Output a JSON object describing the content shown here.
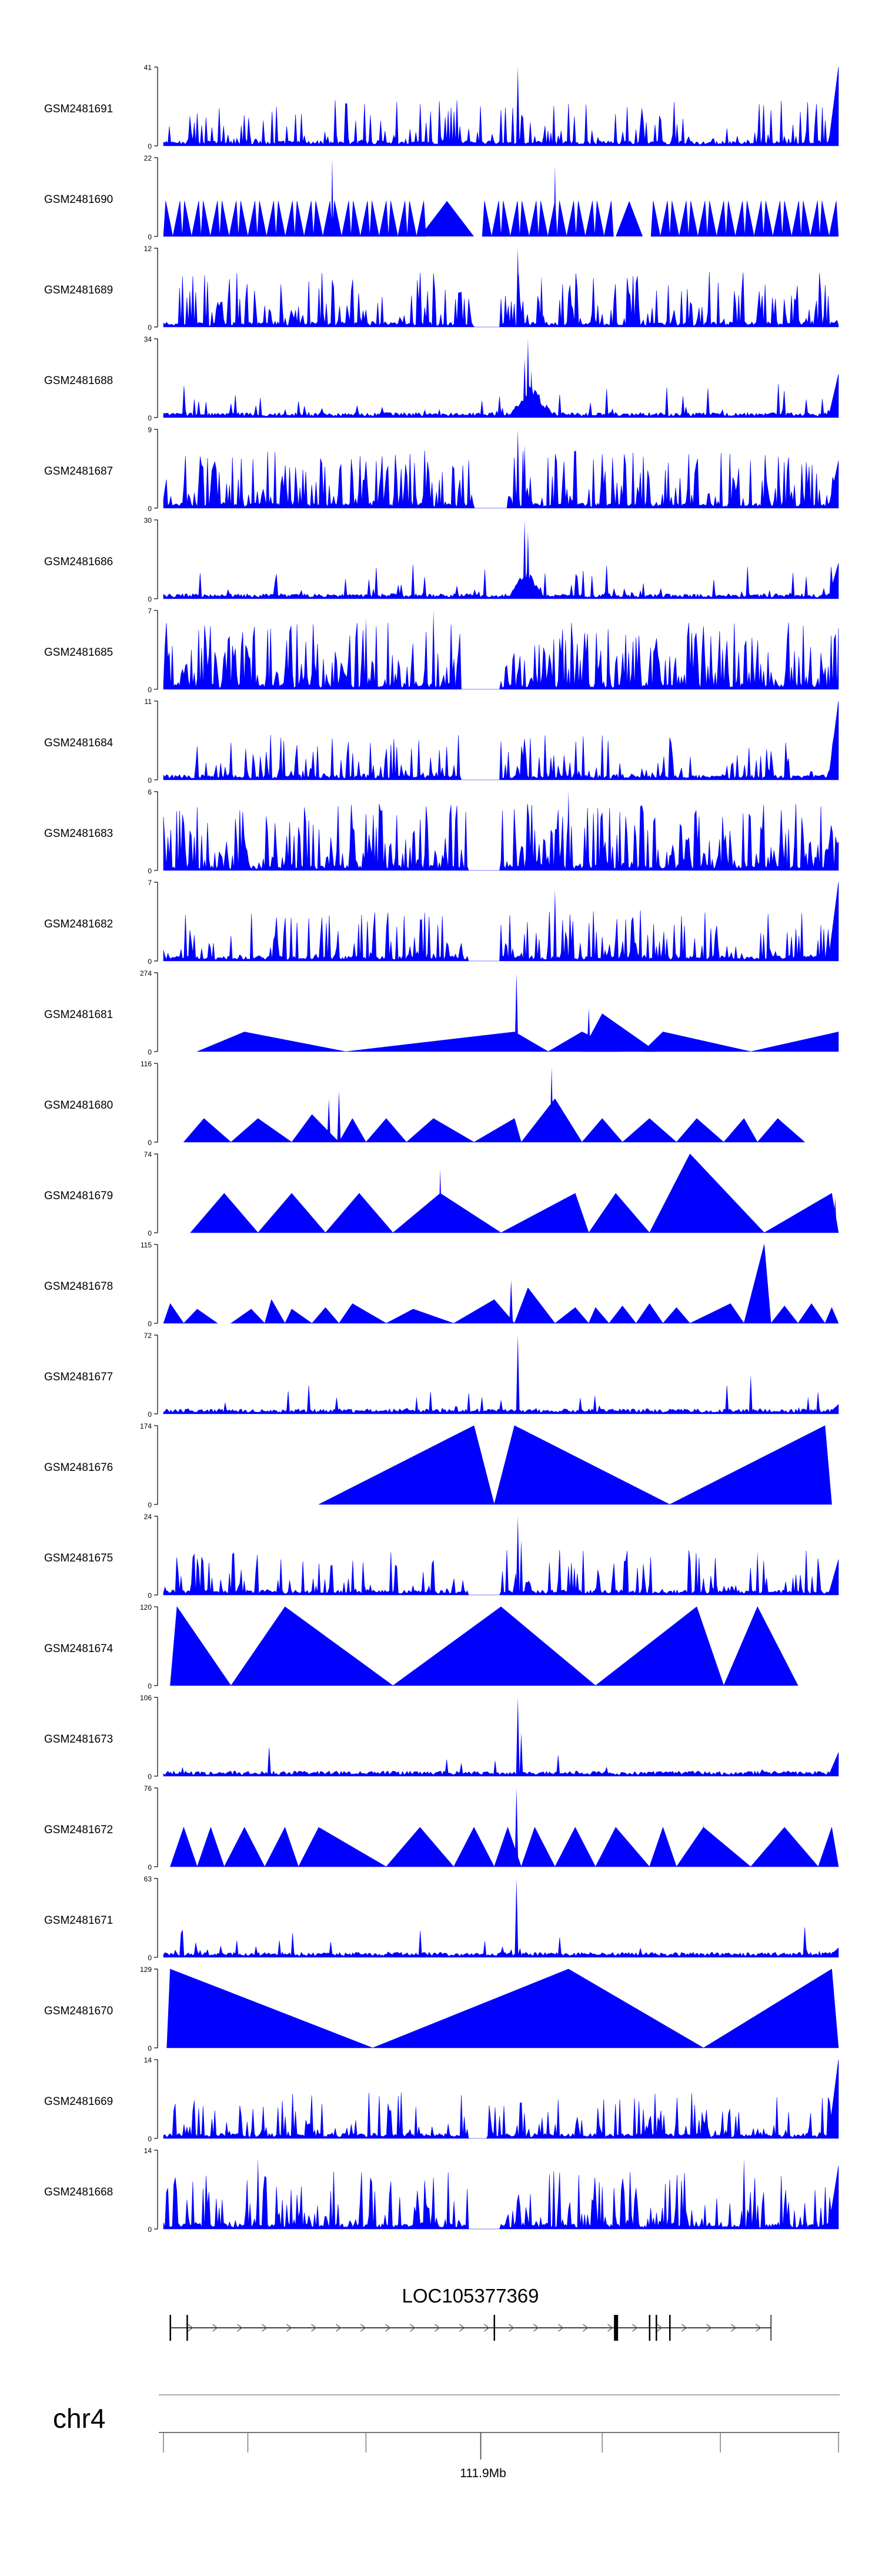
{
  "chart_data": {
    "type": "area",
    "color_fill": "#0000ff",
    "color_axis": "#000000",
    "tracks": [
      {
        "name": "GSM2481691",
        "ymax": 41,
        "ymin": 0,
        "pattern": "noise",
        "density": 0.3,
        "peaks": [
          [
            0.525,
            1.0
          ]
        ],
        "tailRight": 1.0
      },
      {
        "name": "GSM2481690",
        "ymax": 22,
        "ymin": 0,
        "pattern": "triangles",
        "count": 36,
        "gaps": [
          [
            0.38,
            0.46
          ],
          [
            0.67,
            0.71
          ]
        ],
        "spikes": [
          [
            0.25,
            1.0
          ],
          [
            0.58,
            0.9
          ]
        ]
      },
      {
        "name": "GSM2481689",
        "ymax": 12,
        "ymin": 0,
        "pattern": "noise",
        "density": 0.45,
        "peaks": [
          [
            0.525,
            1.0
          ],
          [
            0.56,
            0.65
          ]
        ],
        "gap": [
          0.46,
          0.5
        ]
      },
      {
        "name": "GSM2481688",
        "ymax": 34,
        "ymin": 0,
        "pattern": "noise",
        "density": 0.1,
        "peaks": [
          [
            0.54,
            1.0
          ],
          [
            0.535,
            0.75
          ],
          [
            0.545,
            0.6
          ]
        ],
        "broadPeak": [
          0.51,
          0.58,
          0.45
        ],
        "tailRight": 0.55
      },
      {
        "name": "GSM2481687",
        "ymax": 9,
        "ymin": 0,
        "pattern": "noise",
        "density": 0.5,
        "peaks": [
          [
            0.525,
            1.0
          ],
          [
            0.535,
            0.8
          ]
        ],
        "gap": [
          0.46,
          0.51
        ],
        "tailRight": 0.6
      },
      {
        "name": "GSM2481686",
        "ymax": 30,
        "ymin": 0,
        "pattern": "noise",
        "density": 0.1,
        "peaks": [
          [
            0.535,
            1.0
          ],
          [
            0.54,
            0.85
          ]
        ],
        "broadPeak": [
          0.51,
          0.565,
          0.4
        ],
        "tailRight": 0.45
      },
      {
        "name": "GSM2481685",
        "ymax": 7,
        "ymin": 0,
        "pattern": "noise",
        "density": 0.65,
        "peaks": [
          [
            0.4,
            1.0
          ],
          [
            0.3,
            0.9
          ]
        ],
        "gap": [
          0.44,
          0.5
        ]
      },
      {
        "name": "GSM2481684",
        "ymax": 11,
        "ymin": 0,
        "pattern": "noise",
        "density": 0.28,
        "peaks": [],
        "gap": [
          0.44,
          0.5
        ],
        "tailRight": 1.0
      },
      {
        "name": "GSM2481683",
        "ymax": 6,
        "ymin": 0,
        "pattern": "noise",
        "density": 0.65,
        "peaks": [
          [
            0.6,
            1.0
          ]
        ],
        "gap": [
          0.45,
          0.5
        ]
      },
      {
        "name": "GSM2481682",
        "ymax": 7,
        "ymin": 0,
        "pattern": "noise",
        "density": 0.38,
        "peaks": [
          [
            0.58,
            0.9
          ]
        ],
        "gap": [
          0.45,
          0.5
        ],
        "tailRight": 1.0
      },
      {
        "name": "GSM2481681",
        "ymax": 274,
        "ymin": 0,
        "pattern": "shapes",
        "shapes": [
          [
            0.05,
            0.12,
            0.27,
            0.25
          ],
          [
            0.27,
            0.52,
            0.57,
            0.25
          ],
          [
            0.57,
            0.62,
            0.68,
            0.25
          ],
          [
            0.62,
            0.65,
            0.73,
            0.48
          ],
          [
            0.71,
            0.74,
            0.87,
            0.25
          ],
          [
            0.87,
            1.0,
            1.0,
            0.25
          ]
        ],
        "peaks": [
          [
            0.523,
            1.0
          ],
          [
            0.63,
            0.55
          ]
        ]
      },
      {
        "name": "GSM2481680",
        "ymax": 116,
        "ymin": 0,
        "pattern": "shapes",
        "shapes": [
          [
            0.03,
            0.06,
            0.1,
            0.3
          ],
          [
            0.1,
            0.14,
            0.19,
            0.3
          ],
          [
            0.19,
            0.22,
            0.26,
            0.35
          ],
          [
            0.26,
            0.28,
            0.3,
            0.3
          ],
          [
            0.3,
            0.33,
            0.36,
            0.3
          ],
          [
            0.36,
            0.4,
            0.46,
            0.3
          ],
          [
            0.46,
            0.52,
            0.53,
            0.3
          ],
          [
            0.53,
            0.58,
            0.62,
            0.55
          ],
          [
            0.62,
            0.65,
            0.68,
            0.3
          ],
          [
            0.68,
            0.72,
            0.76,
            0.3
          ],
          [
            0.76,
            0.79,
            0.83,
            0.3
          ],
          [
            0.83,
            0.86,
            0.88,
            0.3
          ],
          [
            0.88,
            0.91,
            0.95,
            0.3
          ]
        ],
        "peaks": [
          [
            0.575,
            0.95
          ],
          [
            0.26,
            0.65
          ],
          [
            0.245,
            0.55
          ]
        ]
      },
      {
        "name": "GSM2481679",
        "ymax": 74,
        "ymin": 0,
        "pattern": "shapes",
        "shapes": [
          [
            0.04,
            0.09,
            0.14,
            0.5
          ],
          [
            0.14,
            0.19,
            0.24,
            0.5
          ],
          [
            0.24,
            0.29,
            0.34,
            0.5
          ],
          [
            0.34,
            0.41,
            0.5,
            0.5
          ],
          [
            0.5,
            0.61,
            0.63,
            0.5
          ],
          [
            0.63,
            0.67,
            0.72,
            0.5
          ],
          [
            0.72,
            0.78,
            0.89,
            1.0
          ],
          [
            0.89,
            0.99,
            1.0,
            0.5
          ]
        ],
        "peaks": [
          [
            0.41,
            0.8
          ],
          [
            0.61,
            0.5
          ],
          [
            0.995,
            0.45
          ]
        ]
      },
      {
        "name": "GSM2481678",
        "ymax": 115,
        "ymin": 0,
        "pattern": "shapes",
        "shapes": [
          [
            0.0,
            0.01,
            0.03,
            0.25
          ],
          [
            0.03,
            0.05,
            0.08,
            0.18
          ],
          [
            0.1,
            0.13,
            0.15,
            0.18
          ],
          [
            0.15,
            0.16,
            0.18,
            0.3
          ],
          [
            0.18,
            0.19,
            0.22,
            0.18
          ],
          [
            0.22,
            0.24,
            0.26,
            0.2
          ],
          [
            0.26,
            0.28,
            0.33,
            0.25
          ],
          [
            0.33,
            0.37,
            0.43,
            0.18
          ],
          [
            0.43,
            0.49,
            0.52,
            0.3
          ],
          [
            0.52,
            0.54,
            0.58,
            0.45
          ],
          [
            0.58,
            0.61,
            0.63,
            0.2
          ],
          [
            0.63,
            0.64,
            0.66,
            0.2
          ],
          [
            0.66,
            0.68,
            0.7,
            0.22
          ],
          [
            0.7,
            0.72,
            0.74,
            0.25
          ],
          [
            0.74,
            0.76,
            0.78,
            0.2
          ],
          [
            0.78,
            0.84,
            0.86,
            0.25
          ],
          [
            0.86,
            0.89,
            0.9,
            1.0
          ],
          [
            0.9,
            0.92,
            0.94,
            0.22
          ],
          [
            0.94,
            0.96,
            0.98,
            0.25
          ],
          [
            0.98,
            0.99,
            1.0,
            0.2
          ]
        ],
        "peaks": [
          [
            0.515,
            0.55
          ]
        ]
      },
      {
        "name": "GSM2481677",
        "ymax": 72,
        "ymin": 0,
        "pattern": "noise",
        "density": 0.04,
        "peaks": [
          [
            0.525,
            1.0
          ],
          [
            0.87,
            0.5
          ],
          [
            0.375,
            0.22
          ],
          [
            0.955,
            0.22
          ]
        ],
        "tailRight": 0.12
      },
      {
        "name": "GSM2481676",
        "ymax": 174,
        "ymin": 0,
        "pattern": "shapes",
        "shapes": [
          [
            0.23,
            0.46,
            0.49,
            1.0
          ],
          [
            0.49,
            0.52,
            0.75,
            1.0
          ],
          [
            0.75,
            0.98,
            0.99,
            1.0
          ]
        ],
        "peaks": []
      },
      {
        "name": "GSM2481675",
        "ymax": 24,
        "ymin": 0,
        "pattern": "noise",
        "density": 0.28,
        "peaks": [
          [
            0.525,
            1.0
          ],
          [
            0.53,
            0.7
          ],
          [
            0.88,
            0.55
          ]
        ],
        "gap": [
          0.45,
          0.5
        ],
        "tailRight": 0.45
      },
      {
        "name": "GSM2481674",
        "ymax": 120,
        "ymin": 0,
        "pattern": "shapes",
        "shapes": [
          [
            0.01,
            0.02,
            0.1,
            1.0
          ],
          [
            0.1,
            0.18,
            0.34,
            1.0
          ],
          [
            0.34,
            0.5,
            0.64,
            1.0
          ],
          [
            0.64,
            0.79,
            0.83,
            1.0
          ],
          [
            0.83,
            0.88,
            0.94,
            1.0
          ]
        ],
        "peaks": []
      },
      {
        "name": "GSM2481673",
        "ymax": 106,
        "ymin": 0,
        "pattern": "noise",
        "density": 0.03,
        "peaks": [
          [
            0.525,
            1.0
          ],
          [
            0.53,
            0.55
          ]
        ],
        "tailRight": 0.3
      },
      {
        "name": "GSM2481672",
        "ymax": 76,
        "ymin": 0,
        "pattern": "shapes",
        "shapes": [
          [
            0.01,
            0.03,
            0.05,
            0.5
          ],
          [
            0.05,
            0.07,
            0.09,
            0.5
          ],
          [
            0.09,
            0.12,
            0.15,
            0.5
          ],
          [
            0.15,
            0.18,
            0.2,
            0.5
          ],
          [
            0.2,
            0.23,
            0.33,
            0.5
          ],
          [
            0.33,
            0.38,
            0.43,
            0.5
          ],
          [
            0.43,
            0.46,
            0.49,
            0.5
          ],
          [
            0.49,
            0.51,
            0.53,
            0.5
          ],
          [
            0.53,
            0.55,
            0.58,
            0.5
          ],
          [
            0.58,
            0.61,
            0.64,
            0.5
          ],
          [
            0.64,
            0.67,
            0.72,
            0.5
          ],
          [
            0.72,
            0.74,
            0.76,
            0.5
          ],
          [
            0.76,
            0.8,
            0.87,
            0.5
          ],
          [
            0.87,
            0.92,
            0.97,
            0.5
          ],
          [
            0.97,
            0.99,
            1.0,
            0.5
          ]
        ],
        "peaks": [
          [
            0.523,
            1.0
          ],
          [
            0.8,
            0.55
          ]
        ]
      },
      {
        "name": "GSM2481671",
        "ymax": 63,
        "ymin": 0,
        "pattern": "noise",
        "density": 0.05,
        "peaks": [
          [
            0.523,
            1.0
          ]
        ],
        "tailRight": 0.12
      },
      {
        "name": "GSM2481670",
        "ymax": 129,
        "ymin": 0,
        "pattern": "shapes",
        "shapes": [
          [
            0.005,
            0.01,
            0.31,
            1.0
          ],
          [
            0.31,
            0.6,
            0.8,
            1.0
          ],
          [
            0.8,
            0.99,
            1.0,
            1.0
          ]
        ],
        "peaks": []
      },
      {
        "name": "GSM2481669",
        "ymax": 14,
        "ymin": 0,
        "pattern": "noise",
        "density": 0.3,
        "peaks": [],
        "gap": [
          0.45,
          0.48
        ],
        "tailRight": 1.0
      },
      {
        "name": "GSM2481668",
        "ymax": 14,
        "ymin": 0,
        "pattern": "noise",
        "density": 0.5,
        "peaks": [
          [
            0.14,
            0.9
          ],
          [
            0.86,
            0.9
          ]
        ],
        "gap": [
          0.45,
          0.5
        ],
        "tailRight": 0.8
      }
    ],
    "gene": {
      "label": "LOC105377369",
      "start_frac": 0.01,
      "end_frac": 0.9,
      "strand": "+",
      "exons": [
        0.01,
        0.035,
        0.49,
        0.67,
        0.72,
        0.73,
        0.75
      ]
    },
    "chromosome": {
      "label": "chr4",
      "tick_label": "111.9Mb",
      "tick_frac": 0.47,
      "minor_ticks": [
        0.0,
        0.125,
        0.3,
        0.47,
        0.65,
        0.825,
        1.0
      ]
    }
  }
}
